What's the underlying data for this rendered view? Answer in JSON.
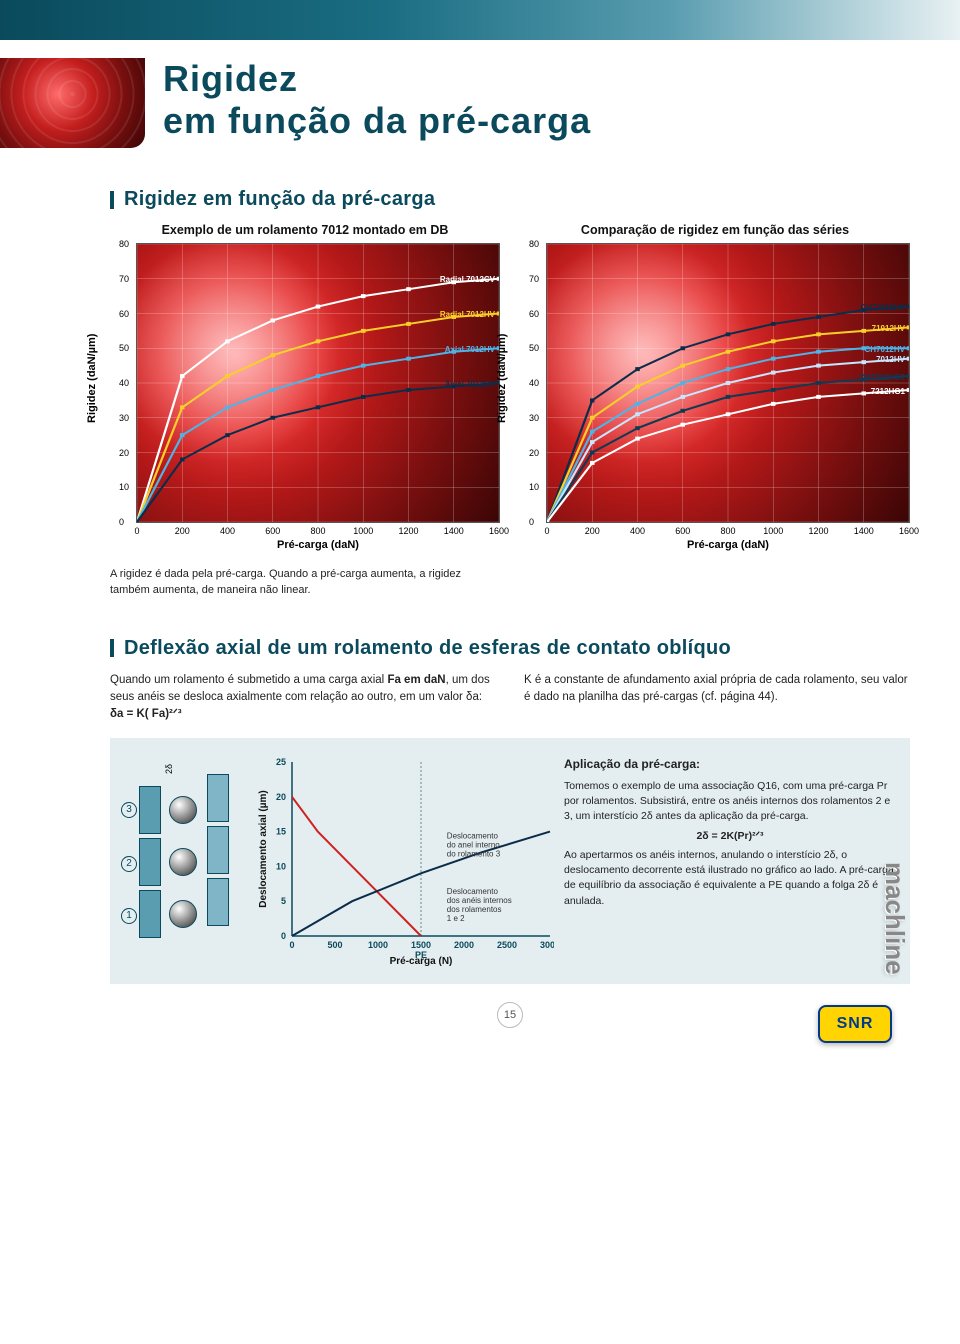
{
  "hero": {
    "line1": "Rigidez",
    "line2": "em função da pré-carga"
  },
  "section1": {
    "heading": "Rigidez em função da pré-carga",
    "chart_left": {
      "type": "line",
      "title": "Exemplo de um rolamento 7012 montado em DB",
      "ylabel": "Rigidez (daN/µm)",
      "xlabel": "Pré-carga (daN)",
      "xlim": [
        0,
        1600
      ],
      "ylim": [
        0,
        80
      ],
      "xtick_step": 200,
      "ytick_step": 10,
      "background": "radial-red",
      "grid_color": "#ffffff",
      "series": [
        {
          "name": "Radial 7012CV",
          "color": "#ffffff",
          "label_y": 70,
          "values": [
            0,
            42,
            52,
            58,
            62,
            65,
            67,
            69,
            70
          ]
        },
        {
          "name": "Radial 7012HV",
          "color": "#f8cf2a",
          "label_y": 60,
          "values": [
            0,
            33,
            42,
            48,
            52,
            55,
            57,
            59,
            60
          ]
        },
        {
          "name": "Axial 7012HV",
          "color": "#4db4e8",
          "label_y": 50,
          "values": [
            0,
            25,
            33,
            38,
            42,
            45,
            47,
            49,
            50
          ]
        },
        {
          "name": "Axial 7012CV",
          "color": "#0b2d4a",
          "label_y": 40,
          "values": [
            0,
            18,
            25,
            30,
            33,
            36,
            38,
            39,
            40
          ]
        }
      ]
    },
    "chart_right": {
      "type": "line",
      "title": "Comparação de rigidez em função das séries",
      "ylabel": "Rigidez (daN/µm)",
      "xlabel": "Pré-carga (daN)",
      "xlim": [
        0,
        1600
      ],
      "ylim": [
        0,
        80
      ],
      "xtick_step": 200,
      "ytick_step": 10,
      "background": "radial-red",
      "grid_color": "#ffffff",
      "series": [
        {
          "name": "CH71912HV",
          "color": "#0b2d4a",
          "label_y": 62,
          "values": [
            0,
            35,
            44,
            50,
            54,
            57,
            59,
            61,
            62
          ]
        },
        {
          "name": "71912HV",
          "color": "#f8cf2a",
          "label_y": 56,
          "values": [
            0,
            30,
            39,
            45,
            49,
            52,
            54,
            55,
            56
          ]
        },
        {
          "name": "CH7012HV",
          "color": "#4db4e8",
          "label_y": 50,
          "values": [
            0,
            26,
            34,
            40,
            44,
            47,
            49,
            50,
            50
          ]
        },
        {
          "name": "7012HV",
          "color": "#c6e6ff",
          "label_y": 47,
          "values": [
            0,
            23,
            31,
            36,
            40,
            43,
            45,
            46,
            47
          ]
        },
        {
          "name": "CH7212HG1",
          "color": "#0e3a55",
          "label_y": 42,
          "values": [
            0,
            20,
            27,
            32,
            36,
            38,
            40,
            41,
            42
          ]
        },
        {
          "name": "7212HG1",
          "color": "#ffffff",
          "label_y": 38,
          "values": [
            0,
            17,
            24,
            28,
            31,
            34,
            36,
            37,
            38
          ]
        }
      ]
    },
    "caption": "A rigidez é dada pela pré-carga. Quando a pré-carga aumenta, a rigidez também aumenta, de maneira não linear."
  },
  "section2": {
    "heading": "Deflexão axial de um rolamento de esferas de contato oblíquo",
    "col1_p1": "Quando um rolamento é submetido a uma carga axial ",
    "col1_p1b": "Fa em daN",
    "col1_p1c": ", um dos seus anéis se desloca axialmente com relação ao outro, em um valor δa: ",
    "col1_formula": "δa = K( Fa)²ᐟ³",
    "col2": "K é a constante de afundamento axial própria de cada rolamento, seu valor é dado na planilha das pré-cargas (cf. página 44)."
  },
  "bottom": {
    "chart": {
      "type": "line",
      "ylabel": "Deslocamento axial (µm)",
      "xlabel": "Pré-carga (N)",
      "xlim": [
        0,
        3000
      ],
      "ylim": [
        0,
        25
      ],
      "xtick_step": 500,
      "ytick_step": 5,
      "pe_x": 1500,
      "series": [
        {
          "name": "anel interno rolamento 3",
          "color": "#d02020",
          "values": [
            [
              0,
              20
            ],
            [
              300,
              15
            ],
            [
              700,
              10
            ],
            [
              1100,
              5
            ],
            [
              1500,
              0
            ]
          ]
        },
        {
          "name": "anéis internos rolamentos 1 e 2",
          "color": "#0b2d4a",
          "values": [
            [
              0,
              0
            ],
            [
              700,
              5
            ],
            [
              1500,
              9
            ],
            [
              2200,
              12
            ],
            [
              3000,
              15
            ]
          ]
        }
      ],
      "label1": "Deslocamento\ndo anel interno\ndo rolamento 3",
      "label2": "Deslocamento\ndos anéis internos\ndos rolamentos\n1 e 2",
      "pe_label": "PE"
    },
    "text": {
      "heading": "Aplicação da pré-carga:",
      "p1": "Tomemos o exemplo de uma associação Q16, com uma pré-carga Pr por rolamentos. Subsistirá, entre os anéis internos dos rolamentos 2 e 3, um interstício 2δ antes da aplicação da pré-carga.",
      "formula": "2δ = 2K(Pr)²ᐟ³",
      "p2": "Ao apertarmos os anéis internos, anulando o interstício  2δ, o deslocamento decorrente está ilustrado no gráfico ao lado. A pré-carga de equilíbrio da associação é equivalente a PE quando a folga  2δ é anulada."
    },
    "bearing_labels": {
      "n1": "3",
      "n2": "2",
      "n3": "1",
      "delta": "2δ"
    }
  },
  "page_number": "15",
  "logos": {
    "snr": "SNR",
    "machline": "machline"
  }
}
